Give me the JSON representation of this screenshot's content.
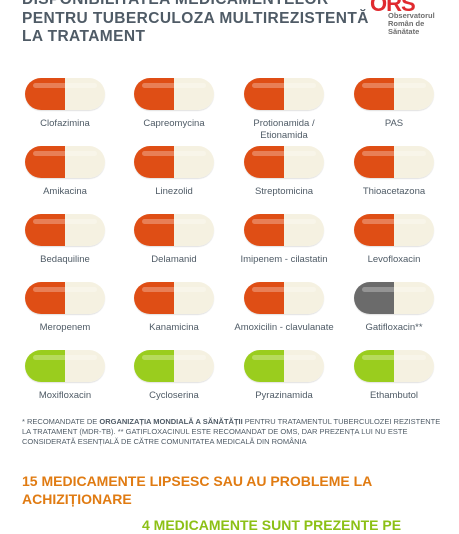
{
  "title": {
    "line1": "DISPONIBILITATEA MEDICAMENTELOR*",
    "line2": "PENTRU TUBERCULOZA MULTIREZISTENTĂ",
    "line3": "LA TRATAMENT"
  },
  "logo": {
    "mark": "ORS",
    "line1": "Observatorul",
    "line2": "Român de",
    "line3": "Sănătate"
  },
  "colors": {
    "orange": "#df4e15",
    "gray": "#6b6b6b",
    "green": "#9acd1e",
    "cream": "#f5f1e1",
    "summary_orange": "#e07b12",
    "summary_green": "#8cc016"
  },
  "pills": [
    {
      "label": "Clofazimina",
      "color": "orange"
    },
    {
      "label": "Capreomycina",
      "color": "orange"
    },
    {
      "label": "Protionamida / Etionamida",
      "color": "orange"
    },
    {
      "label": "PAS",
      "color": "orange"
    },
    {
      "label": "Amikacina",
      "color": "orange"
    },
    {
      "label": "Linezolid",
      "color": "orange"
    },
    {
      "label": "Streptomicina",
      "color": "orange"
    },
    {
      "label": "Thioacetazona",
      "color": "orange"
    },
    {
      "label": "Bedaquiline",
      "color": "orange"
    },
    {
      "label": "Delamanid",
      "color": "orange"
    },
    {
      "label": "Imipenem - cilastatin",
      "color": "orange"
    },
    {
      "label": "Levofloxacin",
      "color": "orange"
    },
    {
      "label": "Meropenem",
      "color": "orange"
    },
    {
      "label": "Kanamicina",
      "color": "orange"
    },
    {
      "label": "Amoxicilin - clavulanate",
      "color": "orange"
    },
    {
      "label": "Gatifloxacin**",
      "color": "gray"
    },
    {
      "label": "Moxifloxacin",
      "color": "green"
    },
    {
      "label": "Cycloserina",
      "color": "green"
    },
    {
      "label": "Pyrazinamida",
      "color": "green"
    },
    {
      "label": "Ethambutol",
      "color": "green"
    }
  ],
  "note": {
    "part1": "* RECOMANDATE DE ",
    "bold": "ORGANIZAȚIA MONDIALĂ A SĂNĂTĂȚII",
    "part2": " PENTRU TRATAMENTUL TUBERCULOZEI REZISTENTE LA TRATAMENT (MDR-TB). ** GATIFLOXACINUL ESTE RECOMANDAT DE OMS, DAR PREZENȚA LUI NU ESTE CONSIDERATĂ ESENȚIALĂ DE CĂTRE COMUNITATEA MEDICALĂ DIN ROMÂNIA"
  },
  "summary": {
    "missing": "15 MEDICAMENTE LIPSESC SAU AU PROBLEME LA ACHIZIȚIONARE",
    "present": "4 MEDICAMENTE SUNT PREZENTE PE"
  }
}
